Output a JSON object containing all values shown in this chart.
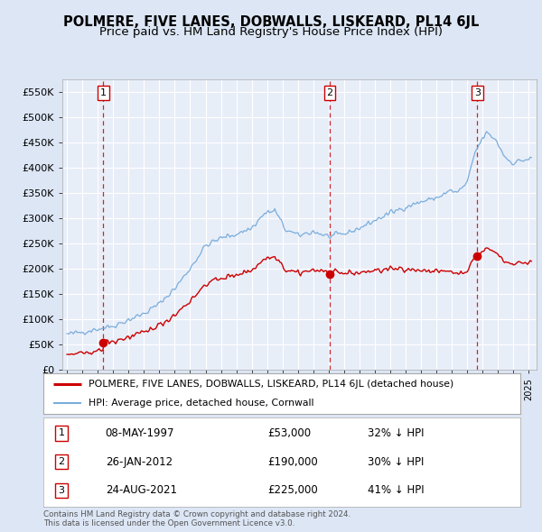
{
  "title": "POLMERE, FIVE LANES, DOBWALLS, LISKEARD, PL14 6JL",
  "subtitle": "Price paid vs. HM Land Registry's House Price Index (HPI)",
  "legend_line1": "POLMERE, FIVE LANES, DOBWALLS, LISKEARD, PL14 6JL (detached house)",
  "legend_line2": "HPI: Average price, detached house, Cornwall",
  "footer1": "Contains HM Land Registry data © Crown copyright and database right 2024.",
  "footer2": "This data is licensed under the Open Government Licence v3.0.",
  "transactions": [
    {
      "num": 1,
      "date": "08-MAY-1997",
      "price": 53000,
      "year": 1997.36,
      "pct": "32% ↓ HPI"
    },
    {
      "num": 2,
      "date": "26-JAN-2012",
      "price": 190000,
      "year": 2012.07,
      "pct": "30% ↓ HPI"
    },
    {
      "num": 3,
      "date": "24-AUG-2021",
      "price": 225000,
      "year": 2021.65,
      "pct": "41% ↓ HPI"
    }
  ],
  "ylim": [
    0,
    575000
  ],
  "xlim_start": 1994.7,
  "xlim_end": 2025.5,
  "background_color": "#dce6f5",
  "plot_bg": "#e8eef8",
  "grid_color": "#ffffff",
  "red_line_color": "#cc0000",
  "blue_line_color": "#7aaddc",
  "dashed_color": "#cc0000",
  "marker_color": "#cc0000",
  "title_fontsize": 10.5,
  "subtitle_fontsize": 9.5,
  "hpi_base_monthly": {
    "start_year": 1995.0,
    "end_year": 2025.3
  },
  "pp_base_monthly": {
    "start_year": 1995.0,
    "end_year": 2025.3
  }
}
